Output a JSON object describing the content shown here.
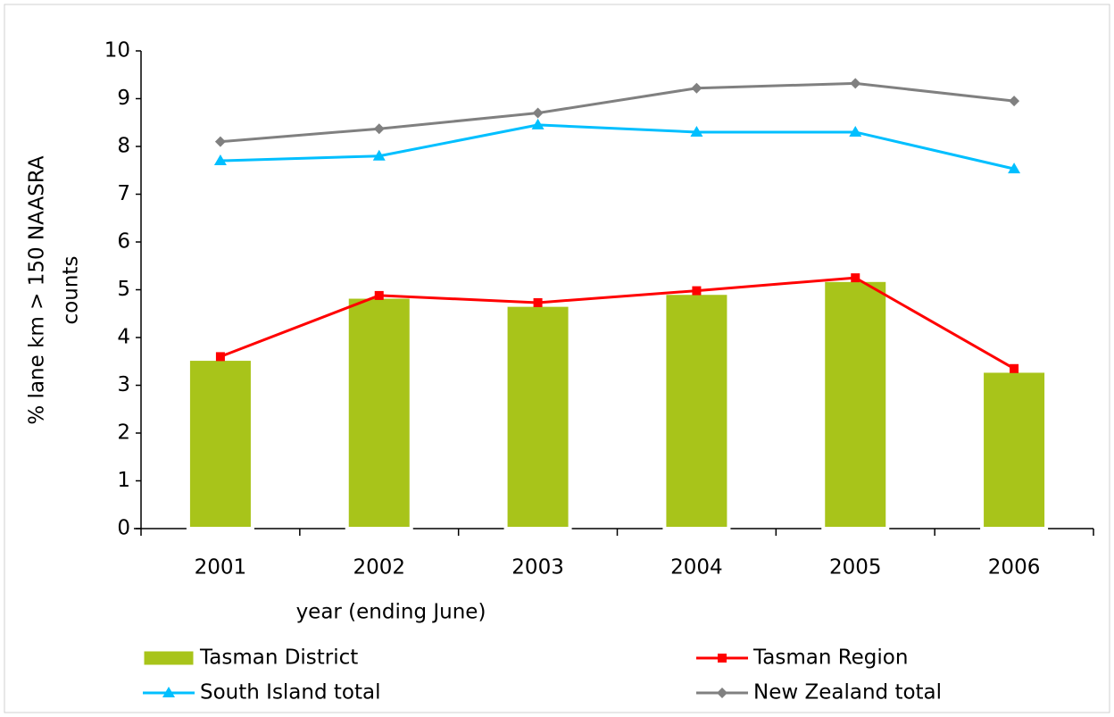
{
  "chart_data": {
    "type": "combo",
    "xlabel": "year (ending June)",
    "ylabel": [
      "% lane km > 150 NAASRA",
      "counts"
    ],
    "categories": [
      "2001",
      "2002",
      "2003",
      "2004",
      "2005",
      "2006"
    ],
    "ylim": [
      0,
      10
    ],
    "yticks": [
      0,
      1,
      2,
      3,
      4,
      5,
      6,
      7,
      8,
      9,
      10
    ],
    "series": [
      {
        "name": "Tasman District",
        "type": "bar",
        "color": "#a8c41a",
        "values": [
          3.55,
          4.85,
          4.68,
          4.93,
          5.2,
          3.3
        ]
      },
      {
        "name": "Tasman Region",
        "type": "line",
        "marker": "square",
        "color": "#ff0000",
        "values": [
          3.6,
          4.88,
          4.73,
          4.98,
          5.25,
          3.35
        ]
      },
      {
        "name": "South Island total",
        "type": "line",
        "marker": "triangle",
        "color": "#00bfff",
        "values": [
          7.7,
          7.8,
          8.45,
          8.3,
          8.3,
          7.53
        ]
      },
      {
        "name": "New Zealand total",
        "type": "line",
        "marker": "diamond",
        "color": "#808080",
        "values": [
          8.1,
          8.37,
          8.7,
          9.22,
          9.32,
          8.95
        ]
      }
    ]
  }
}
